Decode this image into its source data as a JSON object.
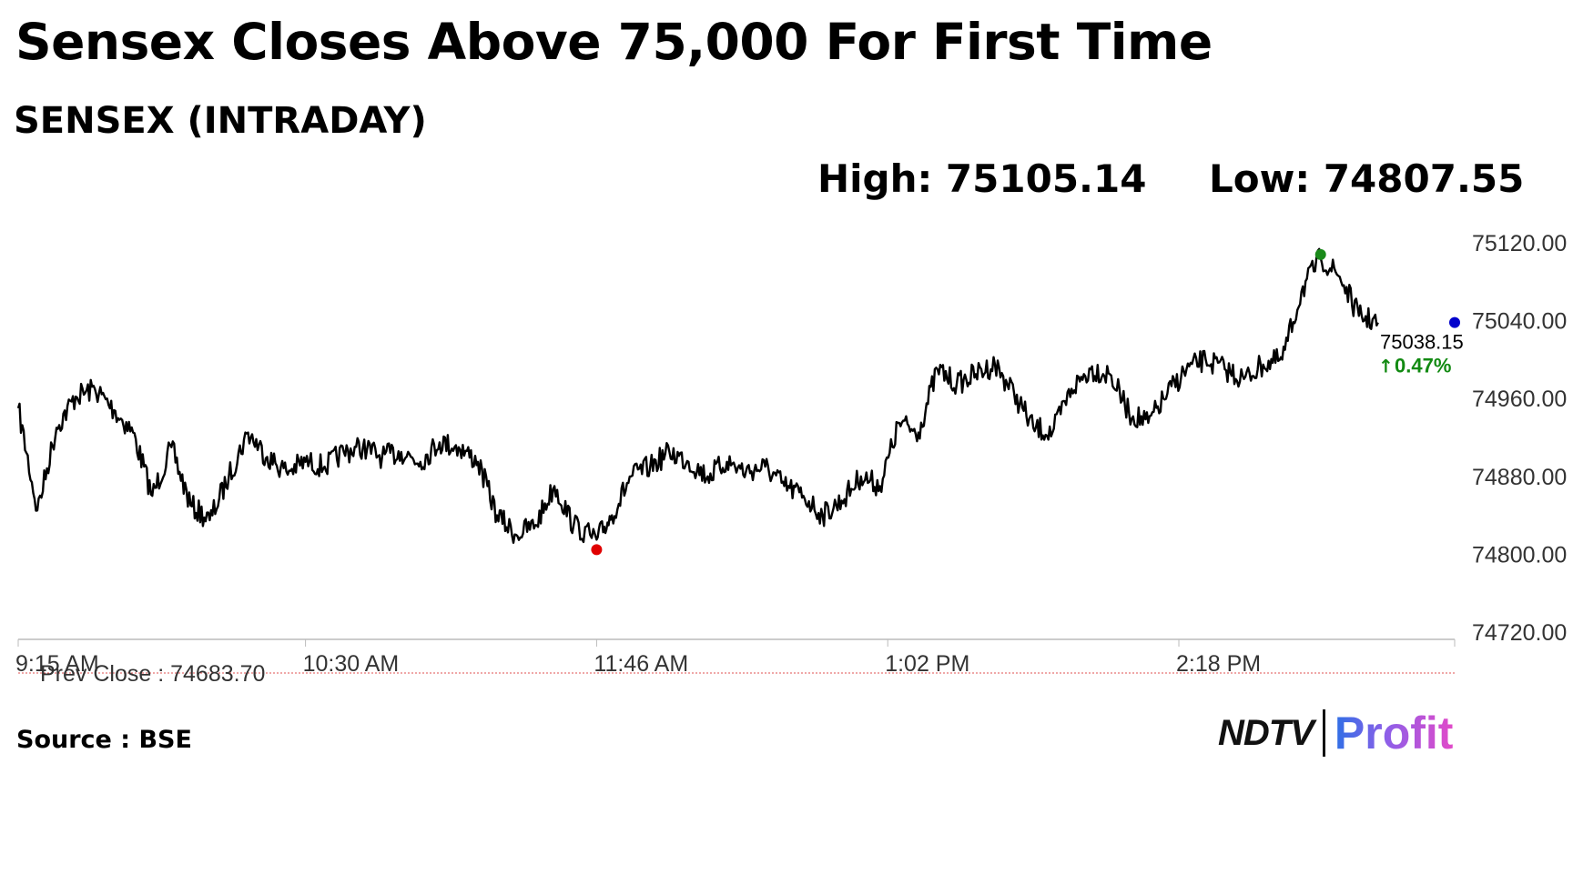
{
  "header": {
    "headline": "Sensex Closes Above 75,000 For First Time",
    "subtitle": "SENSEX (INTRADAY)",
    "high_label": "High: 75105.14",
    "low_label": "Low: 74807.55"
  },
  "footer": {
    "source": "Source : BSE",
    "logo_left": "NDTV",
    "logo_right": "Profit"
  },
  "colors": {
    "line": "#000000",
    "high_marker": "#1a8a1a",
    "low_marker": "#e00000",
    "last_marker": "#0000cc",
    "change_up": "#128a12",
    "prev_close_line": "#e05050",
    "grid_axis": "#bbbbbb"
  },
  "chart_data": {
    "type": "line",
    "title": "SENSEX (INTRADAY)",
    "xlabel": "",
    "ylabel": "",
    "x_ticks": [
      "9:15 AM",
      "10:30 AM",
      "11:46 AM",
      "1:02 PM",
      "2:18 PM"
    ],
    "y_ticks": [
      "75120.00",
      "75040.00",
      "74960.00",
      "74880.00",
      "74800.00",
      "74720.00"
    ],
    "ylim": [
      74720,
      75120
    ],
    "grid": false,
    "high": 75105.14,
    "low": 74807.55,
    "last_value": "75038.15",
    "change_label": "0.47%",
    "prev_close": "Prev Close : 74683.70",
    "series": [
      {
        "x": [
          "9:15",
          "9:20",
          "9:25",
          "9:30",
          "9:35",
          "9:40",
          "9:45",
          "9:50",
          "9:55",
          "10:00",
          "10:05",
          "10:10",
          "10:15",
          "10:20",
          "10:25",
          "10:30",
          "10:35",
          "10:40",
          "10:45",
          "10:50",
          "10:55",
          "11:00",
          "11:05",
          "11:10",
          "11:15",
          "11:20",
          "11:25",
          "11:30",
          "11:35",
          "11:40",
          "11:46",
          "11:50",
          "11:55",
          "12:00",
          "12:05",
          "12:10",
          "12:15",
          "12:20",
          "12:25",
          "12:30",
          "12:35",
          "12:40",
          "12:45",
          "12:50",
          "12:55",
          "13:00",
          "13:05",
          "13:10",
          "13:15",
          "13:20",
          "13:25",
          "13:30",
          "13:35",
          "13:40",
          "13:45",
          "13:50",
          "13:55",
          "14:00",
          "14:05",
          "14:10",
          "14:15",
          "14:20",
          "14:25",
          "14:30",
          "14:35",
          "14:40",
          "14:45",
          "14:50",
          "14:55",
          "15:00",
          "15:05",
          "15:10"
        ],
        "values": [
          74950,
          74845,
          74930,
          74962,
          74970,
          74948,
          74925,
          74860,
          74910,
          74850,
          74835,
          74880,
          74925,
          74900,
          74885,
          74895,
          74890,
          74905,
          74910,
          74900,
          74905,
          74895,
          74915,
          74910,
          74895,
          74840,
          74820,
          74830,
          74870,
          74830,
          74815,
          74840,
          74880,
          74890,
          74905,
          74895,
          74880,
          74895,
          74885,
          74890,
          74870,
          74860,
          74840,
          74855,
          74880,
          74870,
          74935,
          74925,
          74990,
          74975,
          74985,
          74995,
          74965,
          74930,
          74925,
          74970,
          74990,
          74985,
          74945,
          74935,
          74965,
          74990,
          75000,
          74990,
          74980,
          74995,
          75000,
          75070,
          75105,
          75085,
          75045,
          75038
        ]
      }
    ]
  }
}
